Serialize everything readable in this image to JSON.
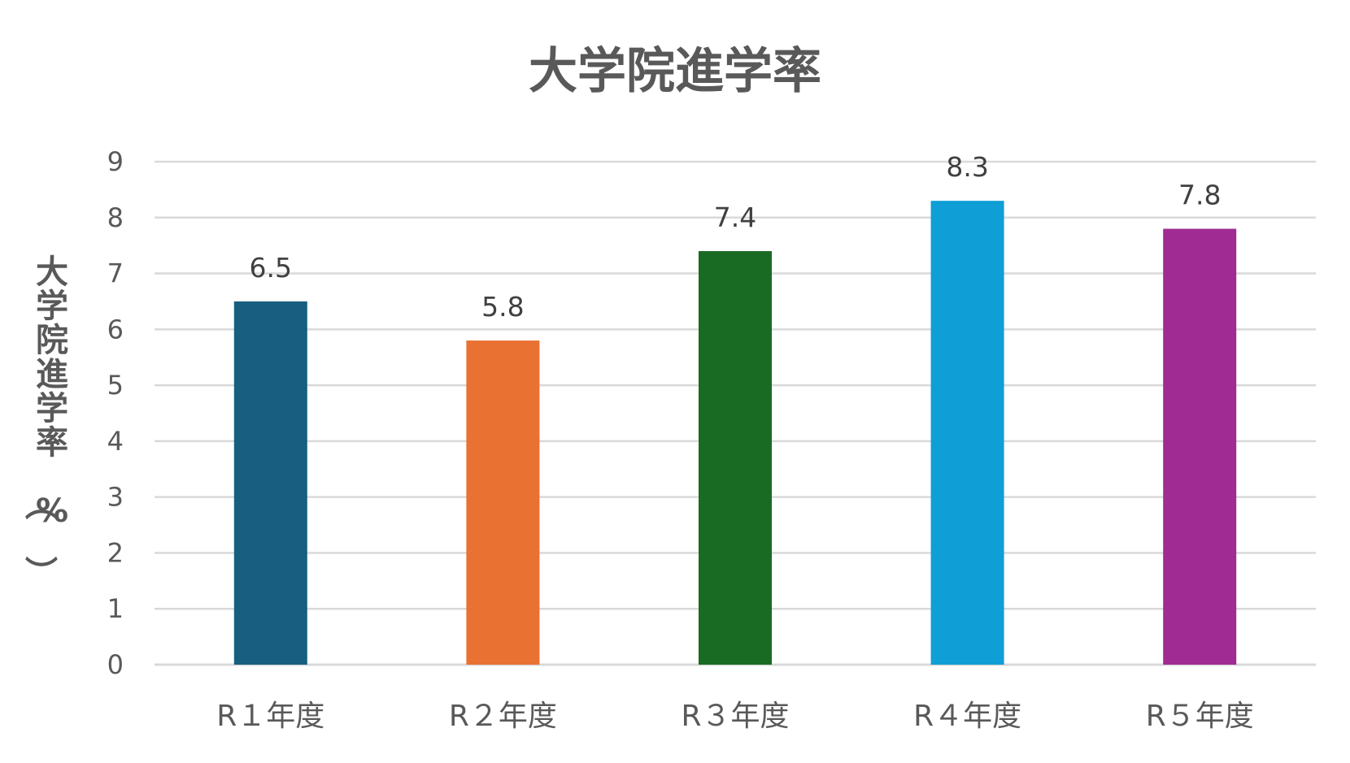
{
  "chart_data": {
    "type": "bar",
    "title": "大学院進学率",
    "ylabel": "大学院進学率（%）",
    "xlabel": "",
    "categories": [
      "R１年度",
      "R２年度",
      "R３年度",
      "R４年度",
      "R５年度"
    ],
    "values": [
      6.5,
      5.8,
      7.4,
      8.3,
      7.8
    ],
    "data_labels": [
      "6.5",
      "5.8",
      "7.4",
      "8.3",
      "7.8"
    ],
    "colors": [
      "#175e80",
      "#e97132",
      "#196b24",
      "#0f9ed5",
      "#a02b93"
    ],
    "ylim": [
      0,
      9
    ],
    "yticks": [
      0,
      1,
      2,
      3,
      4,
      5,
      6,
      7,
      8,
      9
    ],
    "grid": true,
    "legend": "none"
  }
}
